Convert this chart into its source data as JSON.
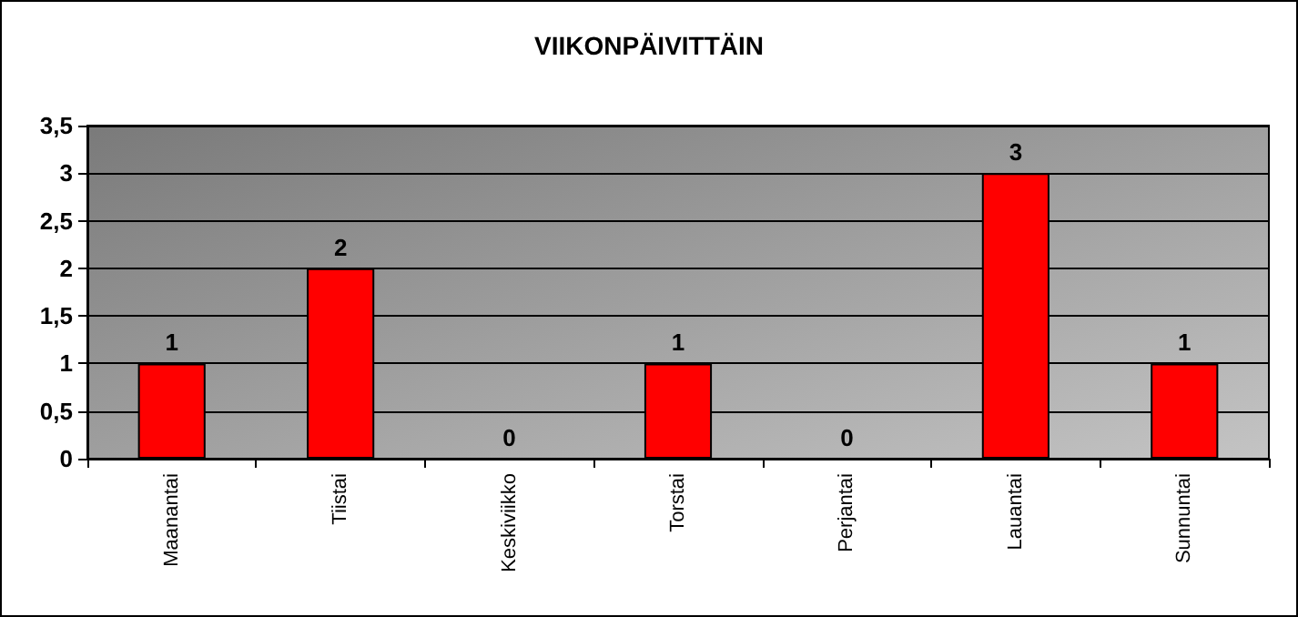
{
  "chart_data": {
    "type": "bar",
    "title": "VIIKONPÄIVITTÄIN",
    "categories": [
      "Maanantai",
      "Tiistai",
      "Keskiviikko",
      "Torstai",
      "Perjantai",
      "Lauantai",
      "Sunnuntai"
    ],
    "values": [
      1,
      2,
      0,
      1,
      0,
      3,
      1
    ],
    "color": "#ff0000",
    "ylim": [
      0,
      3.5
    ],
    "yticks": [
      {
        "value": 0,
        "label": "0"
      },
      {
        "value": 0.5,
        "label": "0,5"
      },
      {
        "value": 1,
        "label": "1"
      },
      {
        "value": 1.5,
        "label": "1,5"
      },
      {
        "value": 2,
        "label": "2"
      },
      {
        "value": 2.5,
        "label": "2,5"
      },
      {
        "value": 3,
        "label": "3"
      },
      {
        "value": 3.5,
        "label": "3,5"
      }
    ],
    "grid": "y",
    "data_labels": true
  }
}
